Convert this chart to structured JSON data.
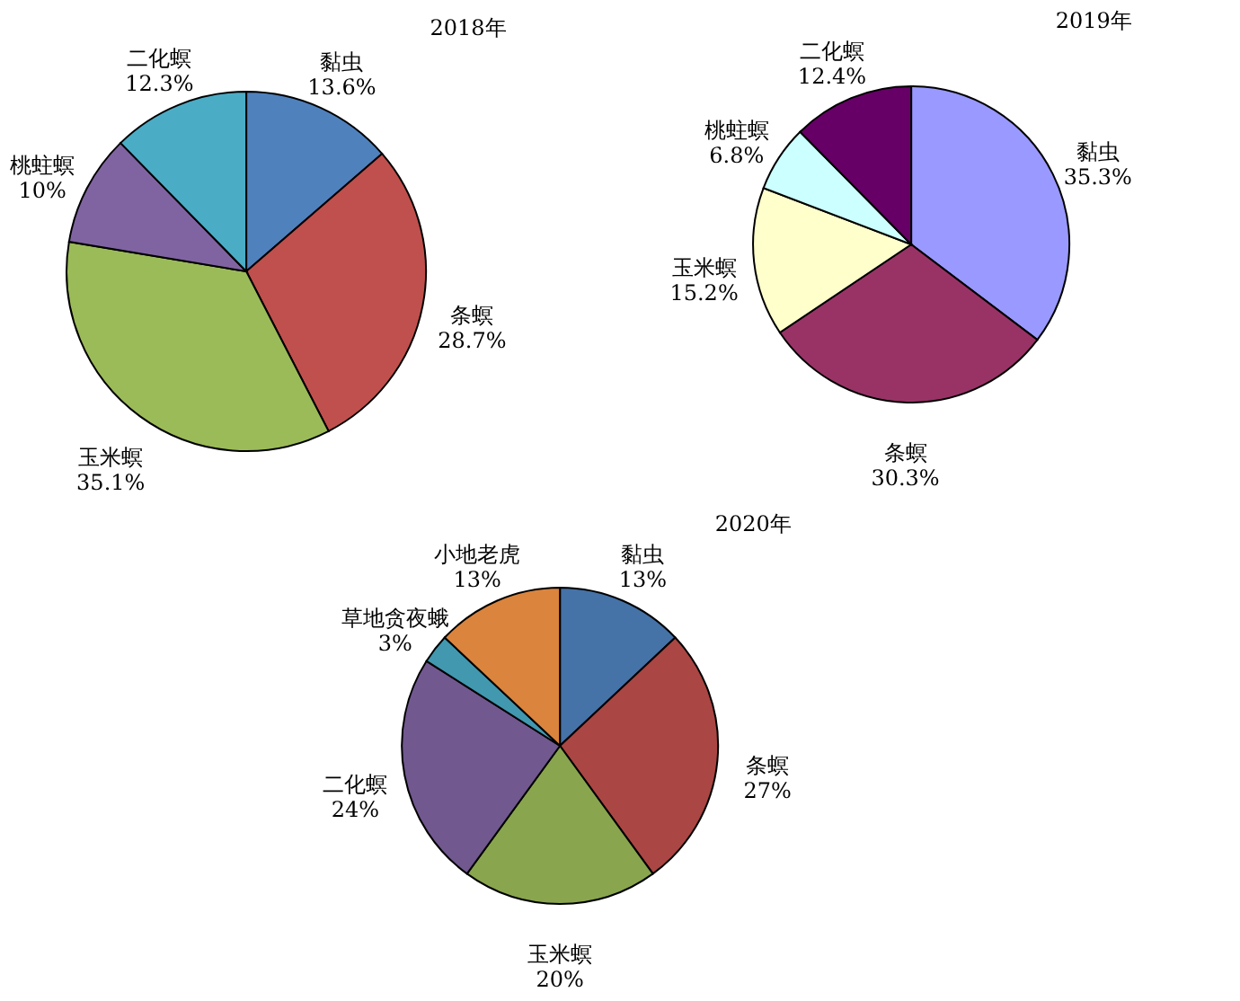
{
  "chart_data": [
    {
      "type": "pie",
      "title": "2018年",
      "categories": [
        "黏虫",
        "条螟",
        "玉米螟",
        "桃蛀螟",
        "二化螟"
      ],
      "values": [
        13.6,
        28.7,
        35.1,
        10,
        12.3
      ],
      "value_labels": [
        "13.6%",
        "28.7%",
        "35.1%",
        "10%",
        "12.3%"
      ],
      "colors": [
        "#4f81bd",
        "#c0504d",
        "#9bbb59",
        "#8064a2",
        "#4bacc6"
      ],
      "legend": false
    },
    {
      "type": "pie",
      "title": "2019年",
      "categories": [
        "黏虫",
        "条螟",
        "玉米螟",
        "桃蛀螟",
        "二化螟"
      ],
      "values": [
        35.3,
        30.3,
        15.2,
        6.8,
        12.4
      ],
      "value_labels": [
        "35.3%",
        "30.3%",
        "15.2%",
        "6.8%",
        "12.4%"
      ],
      "colors": [
        "#9999ff",
        "#993366",
        "#ffffcc",
        "#ccffff",
        "#660066"
      ],
      "legend": false
    },
    {
      "type": "pie",
      "title": "2020年",
      "categories": [
        "黏虫",
        "条螟",
        "玉米螟",
        "二化螟",
        "草地贪夜蛾",
        "小地老虎"
      ],
      "values": [
        13,
        27,
        20,
        24,
        3,
        13
      ],
      "value_labels": [
        "13%",
        "27%",
        "20%",
        "24%",
        "3%",
        "13%"
      ],
      "colors": [
        "#4572a7",
        "#aa4643",
        "#89a54e",
        "#71588f",
        "#4198af",
        "#db843d"
      ],
      "legend": false
    }
  ]
}
